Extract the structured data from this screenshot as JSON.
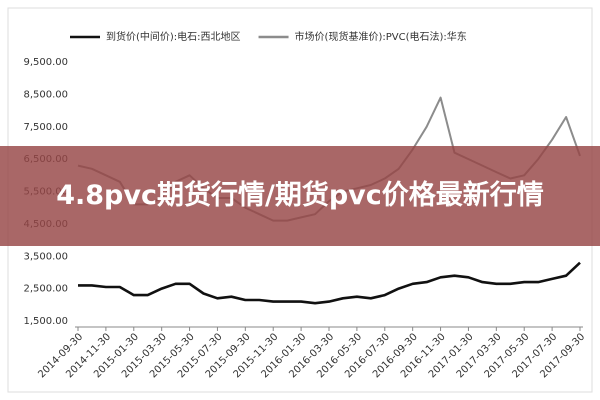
{
  "overlay_title": "4.8pvc期货行情/期货pvc价格最新行情",
  "chart_data": {
    "type": "line",
    "categories": [
      "2014-09-30",
      null,
      "2014-11-30",
      null,
      "2015-01-30",
      null,
      "2015-03-30",
      null,
      "2015-05-30",
      null,
      "2015-07-30",
      null,
      "2015-09-30",
      null,
      "2015-11-30",
      null,
      "2016-01-30",
      null,
      "2016-03-30",
      null,
      "2016-05-30",
      null,
      "2016-07-30",
      null,
      "2016-09-30",
      null,
      "2016-11-30",
      null,
      "2017-01-30",
      null,
      "2017-03-30",
      null,
      "2017-05-30",
      null,
      "2017-07-30",
      null,
      "2017-09-30"
    ],
    "series": [
      {
        "name": "到货价(中间价):电石:西北地区",
        "color": "#111111",
        "values": [
          2600,
          2600,
          2550,
          2550,
          2300,
          2300,
          2500,
          2650,
          2650,
          2350,
          2200,
          2250,
          2150,
          2150,
          2100,
          2100,
          2100,
          2050,
          2100,
          2200,
          2250,
          2200,
          2300,
          2500,
          2650,
          2700,
          2850,
          2900,
          2850,
          2700,
          2650,
          2650,
          2700,
          2700,
          2800,
          2900,
          3300
        ]
      },
      {
        "name": "市场价(现货基准价):PVC(电石法):华东",
        "color": "#8c8c8c",
        "values": [
          6300,
          6200,
          6000,
          5800,
          5100,
          5100,
          5300,
          5800,
          6000,
          5600,
          5300,
          5300,
          5000,
          4800,
          4600,
          4600,
          4700,
          4800,
          5200,
          5500,
          5600,
          5700,
          5900,
          6200,
          6800,
          7500,
          8400,
          6700,
          6500,
          6300,
          6100,
          5900,
          6000,
          6500,
          7100,
          7800,
          6600
        ]
      }
    ],
    "ylim": [
      1500,
      9500
    ],
    "yticks": [
      {
        "value": 1500,
        "label": "1,500.00"
      },
      {
        "value": 2500,
        "label": "2,500.00"
      },
      {
        "value": 3500,
        "label": "3,500.00"
      },
      {
        "value": 4500,
        "label": "4,500.00"
      },
      {
        "value": 5500,
        "label": "5,500.00"
      },
      {
        "value": 6500,
        "label": "6,500.00"
      },
      {
        "value": 7500,
        "label": "7,500.00"
      },
      {
        "value": 8500,
        "label": "8,500.00"
      },
      {
        "value": 9500,
        "label": "9,500.00"
      }
    ],
    "grid": false
  }
}
